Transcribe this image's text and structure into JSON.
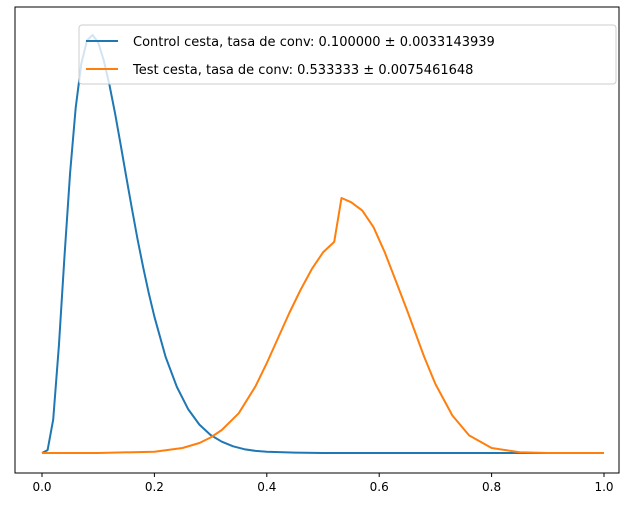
{
  "chart_data": {
    "type": "line",
    "title": "",
    "xlabel": "",
    "ylabel": "",
    "xlim": [
      -0.05,
      1.05
    ],
    "xticks": [
      "0.0",
      "0.2",
      "0.4",
      "0.6",
      "0.8",
      "1.0"
    ],
    "y_ticks_shown": false,
    "grid": false,
    "legend_position": "top-right",
    "series": [
      {
        "name": "Control cesta, tasa de conv: 0.100000 ± 0.0033143939",
        "color": "#1f77b4",
        "x": [
          0.0,
          0.01,
          0.02,
          0.03,
          0.04,
          0.05,
          0.06,
          0.07,
          0.08,
          0.09,
          0.1,
          0.11,
          0.12,
          0.13,
          0.14,
          0.15,
          0.16,
          0.17,
          0.18,
          0.19,
          0.2,
          0.22,
          0.24,
          0.26,
          0.28,
          0.3,
          0.32,
          0.34,
          0.36,
          0.38,
          0.4,
          0.45,
          0.5,
          0.6,
          0.8,
          1.0
        ],
        "y": [
          0.0,
          0.007,
          0.08,
          0.257,
          0.471,
          0.67,
          0.826,
          0.931,
          0.987,
          1.0,
          0.982,
          0.939,
          0.881,
          0.812,
          0.737,
          0.66,
          0.585,
          0.512,
          0.444,
          0.382,
          0.326,
          0.23,
          0.158,
          0.105,
          0.068,
          0.043,
          0.027,
          0.016,
          0.009,
          0.005,
          0.003,
          0.001,
          0.0,
          0.0,
          0.0,
          0.0
        ]
      },
      {
        "name": "Test cesta, tasa de conv: 0.533333 ± 0.0075461648",
        "color": "#ff7f0e",
        "x": [
          0.0,
          0.1,
          0.2,
          0.25,
          0.28,
          0.3,
          0.32,
          0.35,
          0.38,
          0.4,
          0.42,
          0.44,
          0.46,
          0.48,
          0.5,
          0.52,
          0.533,
          0.55,
          0.57,
          0.59,
          0.61,
          0.63,
          0.65,
          0.68,
          0.7,
          0.73,
          0.76,
          0.8,
          0.85,
          0.9,
          1.0
        ],
        "y": [
          0.0,
          0.0,
          0.003,
          0.012,
          0.024,
          0.037,
          0.055,
          0.095,
          0.16,
          0.215,
          0.275,
          0.335,
          0.39,
          0.44,
          0.48,
          0.505,
          0.61,
          0.6,
          0.58,
          0.54,
          0.48,
          0.41,
          0.34,
          0.23,
          0.165,
          0.09,
          0.042,
          0.012,
          0.002,
          0.0,
          0.0
        ]
      }
    ]
  }
}
